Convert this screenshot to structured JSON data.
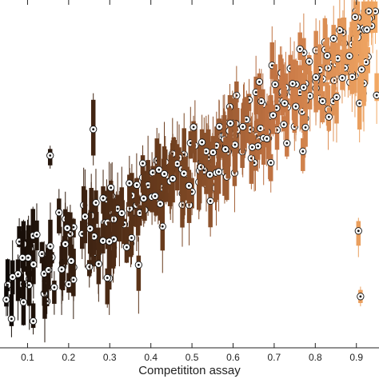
{
  "chart_data": {
    "type": "scatter",
    "title": "",
    "xlabel": "Competititon assay",
    "ylabel": "",
    "xlim": [
      0.033,
      0.955
    ],
    "ylim": [
      0,
      1
    ],
    "xticks": [
      0.1,
      0.2,
      0.3,
      0.4,
      0.5,
      0.6,
      0.7,
      0.8,
      0.9
    ],
    "xtick_labels": [
      "0.1",
      "0.2",
      "0.3",
      "0.4",
      "0.5",
      "0.6",
      "0.7",
      "0.8",
      "0.9"
    ],
    "grid": false,
    "legend": "none",
    "marker": "circled-dot median with vertical bar (interquartile) and whisker line",
    "color_scale": {
      "low": "#000000",
      "mid": "#7a4a2a",
      "high": "#f0a060",
      "encodes": "x"
    },
    "outliers": [
      {
        "x": 0.905,
        "median": 0.32,
        "q1": 0.275,
        "q3": 0.35,
        "lo": 0.24,
        "hi": 0.36
      },
      {
        "x": 0.91,
        "median": 0.12,
        "q1": 0.1,
        "q3": 0.14,
        "lo": 0.09,
        "hi": 0.15
      },
      {
        "x": 0.26,
        "median": 0.63,
        "q1": 0.55,
        "q3": 0.72,
        "lo": 0.52,
        "hi": 0.74
      },
      {
        "x": 0.155,
        "median": 0.55,
        "q1": 0.52,
        "q3": 0.57,
        "lo": 0.51,
        "hi": 0.58
      }
    ],
    "trend_description": ""
  }
}
